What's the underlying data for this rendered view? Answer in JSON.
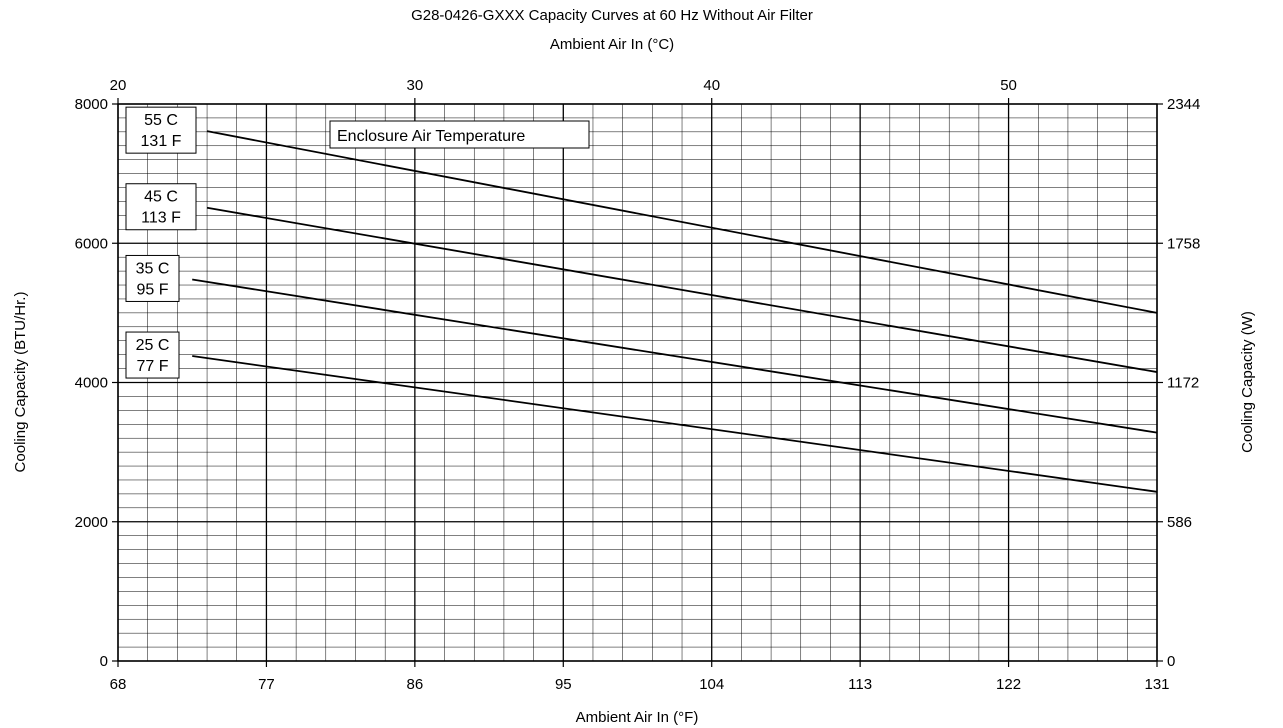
{
  "chart_data": {
    "type": "line",
    "title": "G28-0426-GXXX Capacity Curves at 60 Hz Without Air Filter",
    "top_axis_title": "Ambient Air In (°C)",
    "xlabel": "Ambient Air In (°F)",
    "ylabel": "Cooling Capacity (BTU/Hr.)",
    "y2label": "Cooling Capacity (W)",
    "xlim": [
      68,
      131
    ],
    "ylim": [
      0,
      8000
    ],
    "x_ticks": [
      {
        "value": 68,
        "label": "68"
      },
      {
        "value": 77,
        "label": "77"
      },
      {
        "value": 86,
        "label": "86"
      },
      {
        "value": 95,
        "label": "95"
      },
      {
        "value": 104,
        "label": "104"
      },
      {
        "value": 113,
        "label": "113"
      },
      {
        "value": 122,
        "label": "122"
      },
      {
        "value": 131,
        "label": "131"
      }
    ],
    "top_ticks": [
      {
        "value": 68,
        "label": "20"
      },
      {
        "value": 86,
        "label": "30"
      },
      {
        "value": 104,
        "label": "40"
      },
      {
        "value": 122,
        "label": "50"
      }
    ],
    "y_ticks": [
      {
        "value": 0,
        "label": "0"
      },
      {
        "value": 2000,
        "label": "2000"
      },
      {
        "value": 4000,
        "label": "4000"
      },
      {
        "value": 6000,
        "label": "6000"
      },
      {
        "value": 8000,
        "label": "8000"
      }
    ],
    "y2_ticks": [
      {
        "value": 0,
        "label": "0"
      },
      {
        "value": 2000,
        "label": "586"
      },
      {
        "value": 4000,
        "label": "1172"
      },
      {
        "value": 6000,
        "label": "1758"
      },
      {
        "value": 8000,
        "label": "2344"
      }
    ],
    "grid": true,
    "legend_title": "Enclosure Air Temperature",
    "series": [
      {
        "name": "55 C\n131 F",
        "x": [
          73.4,
          131
        ],
        "y": [
          7610,
          5000
        ]
      },
      {
        "name": "45 C\n113 F",
        "x": [
          73.4,
          131
        ],
        "y": [
          6510,
          4150
        ]
      },
      {
        "name": "35 C\n95 F",
        "x": [
          72.5,
          131
        ],
        "y": [
          5480,
          3280
        ]
      },
      {
        "name": "25 C\n77 F",
        "x": [
          72.5,
          131
        ],
        "y": [
          4380,
          2430
        ]
      }
    ],
    "colors": {
      "line": "#000000",
      "grid": "#000000",
      "background": "#ffffff"
    }
  }
}
